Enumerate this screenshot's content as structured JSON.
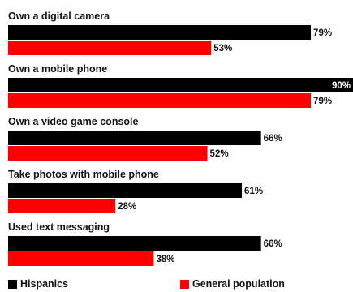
{
  "chart_data": {
    "type": "bar",
    "orientation": "horizontal",
    "categories": [
      "Own a digital camera",
      "Own a mobile phone",
      "Own a video game console",
      "Take photos with mobile phone",
      "Used text messaging"
    ],
    "series": [
      {
        "name": "Hispanics",
        "values": [
          79,
          90,
          66,
          61,
          66
        ],
        "color": "#000000"
      },
      {
        "name": "General population",
        "values": [
          53,
          79,
          52,
          28,
          38
        ],
        "color": "#ff0000"
      }
    ],
    "value_format": "{v}%",
    "xlim": [
      0,
      90
    ],
    "grid": false,
    "legend_placement": "bottom"
  }
}
